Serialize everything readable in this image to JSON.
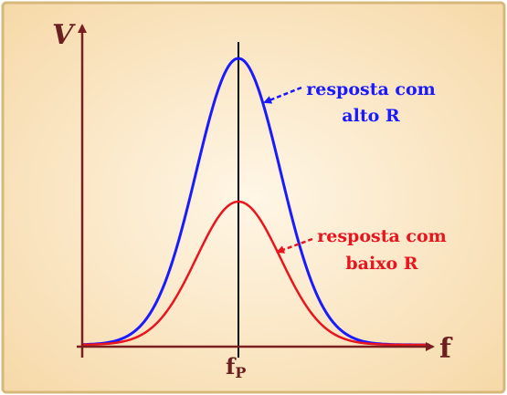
{
  "axes": {
    "y_label": "V",
    "x_label": "f",
    "peak_label_main": "f",
    "peak_label_sub": "P"
  },
  "curves": {
    "high_r": {
      "label_line1": "resposta com",
      "label_line2": "alto R",
      "color": "#1a1aff"
    },
    "low_r": {
      "label_line1": "resposta com",
      "label_line2": "baixo R",
      "color": "#e8141e"
    }
  },
  "colors": {
    "background": "#fbe8c8",
    "frame": "#d6b87a",
    "axis": "#7a1f1f",
    "label_dark": "#6b1f1f",
    "center_line": "#000000"
  },
  "chart_data": {
    "type": "line",
    "series": [
      {
        "name": "resposta com alto R",
        "relative_peak": 1.0
      },
      {
        "name": "resposta com baixo R",
        "relative_peak": 0.5
      }
    ]
  }
}
